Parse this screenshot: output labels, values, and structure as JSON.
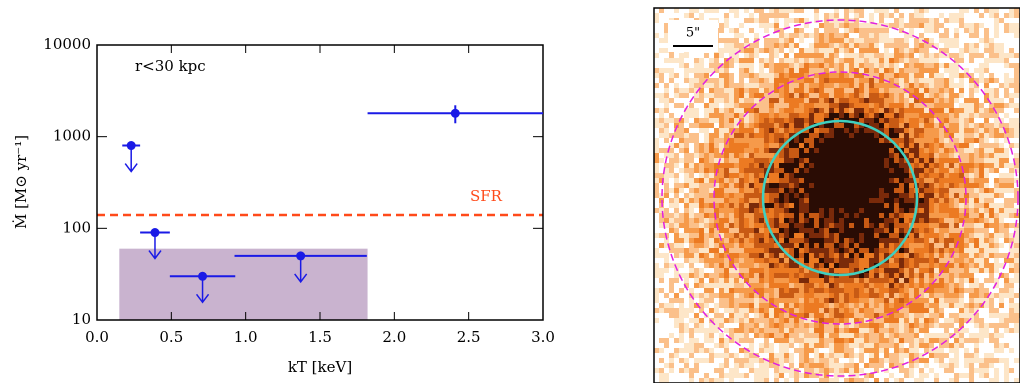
{
  "chart_data": {
    "type": "scatter",
    "annotation": "r<30 kpc",
    "xlabel": "kT [keV]",
    "ylabel": "Ṁ [M⊙ yr⁻¹]",
    "x": [
      0.23,
      0.39,
      0.71,
      1.37,
      2.41
    ],
    "xerr": [
      0.06,
      0.1,
      0.22,
      0.445,
      0.59
    ],
    "values": [
      800,
      90,
      30,
      50,
      1800
    ],
    "yerr": [
      null,
      null,
      null,
      null,
      400
    ],
    "upper_limit": [
      true,
      true,
      true,
      true,
      false
    ],
    "color": "#1a1ae6",
    "hline": {
      "value": 140,
      "label": "SFR",
      "color": "#ff4a1a"
    },
    "band": {
      "x": [
        0.15,
        1.82
      ],
      "y": [
        10,
        60
      ],
      "color": "#c9b3cf"
    },
    "xlim": [
      0,
      3
    ],
    "ylim": [
      10,
      10000
    ],
    "log_y": true,
    "xticks": [
      {
        "value": 0,
        "label": "0.0"
      },
      0.5,
      {
        "value": 1,
        "label": "1.0"
      },
      1.5,
      {
        "value": 2,
        "label": "2.0"
      },
      2.5,
      {
        "value": 3,
        "label": "3.0"
      }
    ],
    "yticks": [
      10,
      100,
      1000,
      10000
    ]
  },
  "image": {
    "scale_label": "5\""
  }
}
